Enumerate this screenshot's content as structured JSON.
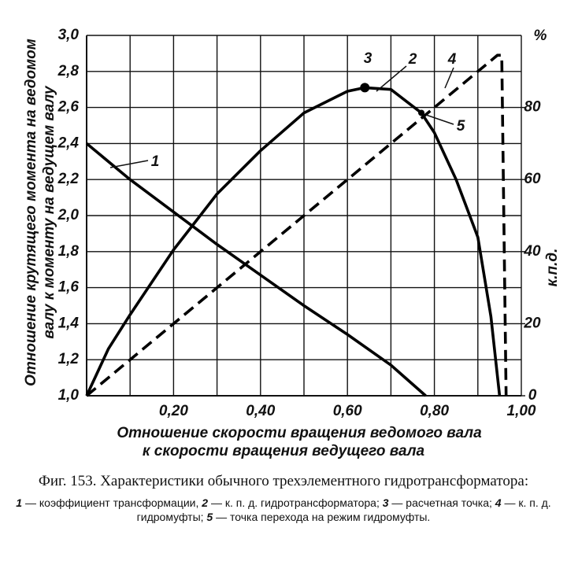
{
  "chart_data": {
    "type": "line",
    "xlabel": [
      "Отношение скорости вращения ведомого вала",
      "к скорости вращения ведущего вала"
    ],
    "ylabel": [
      "Отношение крутящего момента на ведомом",
      "валу к моменту на ведущем валу"
    ],
    "y2label": "к.п.д.",
    "y2unit": "%",
    "xlim": [
      0,
      1.0
    ],
    "ylim": [
      1.0,
      3.0
    ],
    "y2lim": [
      0,
      100
    ],
    "xticks": [
      {
        "value": 0.2,
        "label": "0,20"
      },
      {
        "value": 0.4,
        "label": "0,40"
      },
      {
        "value": 0.6,
        "label": "0,60"
      },
      {
        "value": 0.8,
        "label": "0,80"
      },
      {
        "value": 1.0,
        "label": "1,00"
      }
    ],
    "xgrid": [
      0.1,
      0.3,
      0.5,
      0.7,
      0.9
    ],
    "yticks": [
      {
        "value": 1.0,
        "label": "1,0"
      },
      {
        "value": 1.2,
        "label": "1,2"
      },
      {
        "value": 1.4,
        "label": "1,4"
      },
      {
        "value": 1.6,
        "label": "1,6"
      },
      {
        "value": 1.8,
        "label": "1,8"
      },
      {
        "value": 2.0,
        "label": "2,0"
      },
      {
        "value": 2.2,
        "label": "2,2"
      },
      {
        "value": 2.4,
        "label": "2,4"
      },
      {
        "value": 2.6,
        "label": "2,6"
      },
      {
        "value": 2.8,
        "label": "2,8"
      },
      {
        "value": 3.0,
        "label": "3,0"
      }
    ],
    "y2ticks": [
      0,
      20,
      40,
      60,
      80
    ],
    "grid": true,
    "series": [
      {
        "name": "1",
        "color": "#000000",
        "dash": false,
        "x": [
          0,
          0.1,
          0.2,
          0.3,
          0.4,
          0.5,
          0.6,
          0.7,
          0.78
        ],
        "values": [
          2.4,
          2.2,
          2.02,
          1.84,
          1.67,
          1.5,
          1.34,
          1.17,
          1.0
        ]
      },
      {
        "name": "2",
        "color": "#000000",
        "dash": false,
        "axis": "y2",
        "x": [
          0,
          0.05,
          0.1,
          0.2,
          0.3,
          0.4,
          0.5,
          0.6,
          0.64,
          0.7,
          0.77,
          0.8,
          0.85,
          0.9,
          0.93,
          0.95
        ],
        "values": [
          0,
          13,
          22.5,
          40.5,
          56,
          68,
          78.5,
          84.5,
          85.5,
          85,
          78.5,
          73,
          60,
          44,
          22,
          0
        ]
      },
      {
        "name": "3",
        "color": "#000000",
        "marker": true,
        "axis": "y2",
        "x": [
          0.64
        ],
        "values": [
          85.5
        ]
      },
      {
        "name": "4",
        "color": "#000000",
        "dash": true,
        "axis": "y2",
        "x": [
          0,
          0.945,
          0.955,
          0.965
        ],
        "values": [
          0,
          94.5,
          94.5,
          0
        ]
      },
      {
        "name": "5",
        "color": "#000000",
        "marker": true,
        "axis": "y2",
        "x": [
          0.77
        ],
        "values": [
          78.5
        ]
      }
    ]
  },
  "caption": {
    "title": "Фиг. 153. Характеристики обычного трехэлементного гидротрансформатора:",
    "items": [
      {
        "num": "1",
        "text": "— коэффициент трансформации,"
      },
      {
        "num": "2",
        "text": "— к. п. д. гидротрансформатора;"
      },
      {
        "num": "3",
        "text": "— расчетная точка;"
      },
      {
        "num": "4",
        "text": "— к. п. д. гидромуфты;"
      },
      {
        "num": "5",
        "text": "— точка перехода на режим гидромуфты."
      }
    ]
  }
}
